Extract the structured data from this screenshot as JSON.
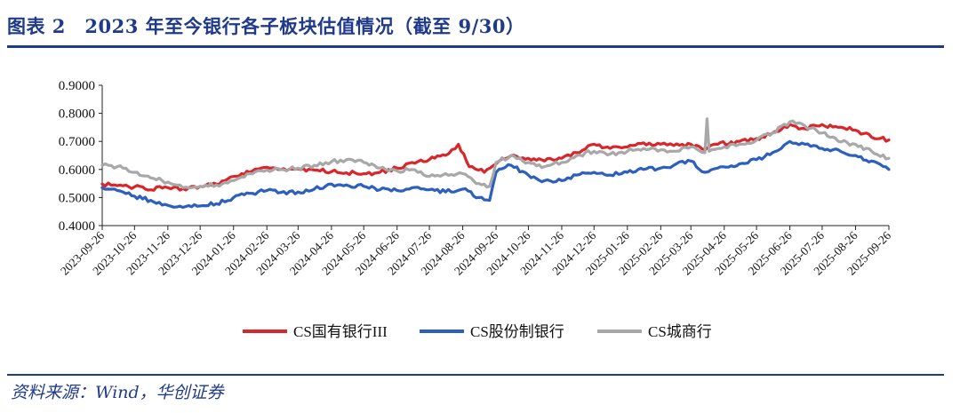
{
  "header": {
    "title": "图表 2　2023 年至今银行各子板块估值情况（截至 9/30）"
  },
  "source": "资料来源：Wind，华创证券",
  "colors": {
    "accent": "#1f3a8a",
    "series_red": "#d9262b",
    "series_blue": "#2d5fbf",
    "series_gray": "#a8a8a8"
  },
  "chart_data": {
    "type": "line",
    "title": "",
    "xlabel": "",
    "ylabel": "",
    "ylim": [
      0.4,
      0.9
    ],
    "yticks": [
      "0.9000",
      "0.8000",
      "0.7000",
      "0.6000",
      "0.5000",
      "0.4000"
    ],
    "x_tick_labels": [
      "2023-09-26",
      "2023-10-26",
      "2023-11-26",
      "2023-12-26",
      "2024-01-26",
      "2024-02-26",
      "2024-03-26",
      "2024-04-26",
      "2024-05-26",
      "2024-06-26",
      "2024-07-26",
      "2024-08-26",
      "2024-09-26",
      "2024-10-26",
      "2024-11-26",
      "2024-12-26",
      "2025-01-26",
      "2025-02-26",
      "2025-03-26",
      "2025-04-26",
      "2025-05-26",
      "2025-06-26",
      "2025-07-26",
      "2025-08-26",
      "2025-09-26"
    ],
    "legend_position": "bottom",
    "series": [
      {
        "name": "CS国有银行III",
        "color": "#d9262b",
        "points": [
          [
            "2023-09-26",
            0.548
          ],
          [
            "2023-10-10",
            0.542
          ],
          [
            "2023-10-26",
            0.538
          ],
          [
            "2023-11-05",
            0.53
          ],
          [
            "2023-11-26",
            0.535
          ],
          [
            "2023-12-10",
            0.532
          ],
          [
            "2023-12-26",
            0.54
          ],
          [
            "2024-01-10",
            0.548
          ],
          [
            "2024-01-26",
            0.575
          ],
          [
            "2024-02-10",
            0.59
          ],
          [
            "2024-02-26",
            0.608
          ],
          [
            "2024-03-10",
            0.6
          ],
          [
            "2024-03-26",
            0.602
          ],
          [
            "2024-04-10",
            0.598
          ],
          [
            "2024-04-26",
            0.592
          ],
          [
            "2024-05-10",
            0.588
          ],
          [
            "2024-05-26",
            0.585
          ],
          [
            "2024-06-10",
            0.59
          ],
          [
            "2024-06-26",
            0.605
          ],
          [
            "2024-07-10",
            0.625
          ],
          [
            "2024-07-26",
            0.635
          ],
          [
            "2024-08-10",
            0.65
          ],
          [
            "2024-08-22",
            0.69
          ],
          [
            "2024-09-01",
            0.61
          ],
          [
            "2024-09-15",
            0.59
          ],
          [
            "2024-09-26",
            0.62
          ],
          [
            "2024-10-10",
            0.65
          ],
          [
            "2024-10-26",
            0.64
          ],
          [
            "2024-11-10",
            0.63
          ],
          [
            "2024-11-26",
            0.64
          ],
          [
            "2024-12-10",
            0.66
          ],
          [
            "2024-12-26",
            0.69
          ],
          [
            "2025-01-10",
            0.675
          ],
          [
            "2025-01-26",
            0.68
          ],
          [
            "2025-02-10",
            0.695
          ],
          [
            "2025-02-26",
            0.69
          ],
          [
            "2025-03-10",
            0.685
          ],
          [
            "2025-03-26",
            0.69
          ],
          [
            "2025-04-08",
            0.67
          ],
          [
            "2025-04-20",
            0.69
          ],
          [
            "2025-05-10",
            0.7
          ],
          [
            "2025-05-26",
            0.71
          ],
          [
            "2025-06-10",
            0.73
          ],
          [
            "2025-06-26",
            0.76
          ],
          [
            "2025-07-10",
            0.745
          ],
          [
            "2025-07-26",
            0.76
          ],
          [
            "2025-08-10",
            0.75
          ],
          [
            "2025-08-26",
            0.74
          ],
          [
            "2025-09-10",
            0.715
          ],
          [
            "2025-09-26",
            0.705
          ]
        ]
      },
      {
        "name": "CS股份制银行",
        "color": "#2d5fbf",
        "points": [
          [
            "2023-09-26",
            0.535
          ],
          [
            "2023-10-10",
            0.525
          ],
          [
            "2023-10-26",
            0.505
          ],
          [
            "2023-11-10",
            0.49
          ],
          [
            "2023-11-26",
            0.472
          ],
          [
            "2023-12-10",
            0.465
          ],
          [
            "2023-12-26",
            0.47
          ],
          [
            "2024-01-10",
            0.478
          ],
          [
            "2024-01-26",
            0.5
          ],
          [
            "2024-02-10",
            0.515
          ],
          [
            "2024-02-26",
            0.525
          ],
          [
            "2024-03-10",
            0.518
          ],
          [
            "2024-03-26",
            0.52
          ],
          [
            "2024-04-10",
            0.53
          ],
          [
            "2024-04-26",
            0.548
          ],
          [
            "2024-05-10",
            0.545
          ],
          [
            "2024-05-26",
            0.54
          ],
          [
            "2024-06-10",
            0.528
          ],
          [
            "2024-06-26",
            0.525
          ],
          [
            "2024-07-10",
            0.535
          ],
          [
            "2024-07-26",
            0.528
          ],
          [
            "2024-08-10",
            0.52
          ],
          [
            "2024-08-26",
            0.53
          ],
          [
            "2024-09-10",
            0.5
          ],
          [
            "2024-09-20",
            0.49
          ],
          [
            "2024-09-26",
            0.59
          ],
          [
            "2024-10-10",
            0.615
          ],
          [
            "2024-10-26",
            0.58
          ],
          [
            "2024-11-10",
            0.56
          ],
          [
            "2024-11-26",
            0.56
          ],
          [
            "2024-12-10",
            0.58
          ],
          [
            "2024-12-26",
            0.59
          ],
          [
            "2025-01-10",
            0.58
          ],
          [
            "2025-01-26",
            0.59
          ],
          [
            "2025-02-10",
            0.6
          ],
          [
            "2025-02-26",
            0.605
          ],
          [
            "2025-03-10",
            0.615
          ],
          [
            "2025-03-26",
            0.63
          ],
          [
            "2025-04-08",
            0.59
          ],
          [
            "2025-04-20",
            0.605
          ],
          [
            "2025-05-10",
            0.62
          ],
          [
            "2025-05-26",
            0.635
          ],
          [
            "2025-06-10",
            0.66
          ],
          [
            "2025-06-26",
            0.7
          ],
          [
            "2025-07-10",
            0.69
          ],
          [
            "2025-07-26",
            0.675
          ],
          [
            "2025-08-10",
            0.67
          ],
          [
            "2025-08-26",
            0.65
          ],
          [
            "2025-09-10",
            0.63
          ],
          [
            "2025-09-26",
            0.6
          ]
        ]
      },
      {
        "name": "CS城商行",
        "color": "#a8a8a8",
        "points": [
          [
            "2023-09-26",
            0.615
          ],
          [
            "2023-10-10",
            0.61
          ],
          [
            "2023-10-26",
            0.59
          ],
          [
            "2023-11-10",
            0.57
          ],
          [
            "2023-11-26",
            0.555
          ],
          [
            "2023-12-10",
            0.535
          ],
          [
            "2023-12-26",
            0.54
          ],
          [
            "2024-01-10",
            0.545
          ],
          [
            "2024-01-26",
            0.56
          ],
          [
            "2024-02-10",
            0.585
          ],
          [
            "2024-02-26",
            0.598
          ],
          [
            "2024-03-10",
            0.6
          ],
          [
            "2024-03-26",
            0.605
          ],
          [
            "2024-04-10",
            0.615
          ],
          [
            "2024-04-26",
            0.628
          ],
          [
            "2024-05-10",
            0.635
          ],
          [
            "2024-05-26",
            0.625
          ],
          [
            "2024-06-10",
            0.605
          ],
          [
            "2024-06-26",
            0.595
          ],
          [
            "2024-07-10",
            0.6
          ],
          [
            "2024-07-26",
            0.575
          ],
          [
            "2024-08-10",
            0.585
          ],
          [
            "2024-08-26",
            0.585
          ],
          [
            "2024-09-10",
            0.55
          ],
          [
            "2024-09-20",
            0.54
          ],
          [
            "2024-09-26",
            0.625
          ],
          [
            "2024-10-10",
            0.65
          ],
          [
            "2024-10-26",
            0.625
          ],
          [
            "2024-11-10",
            0.61
          ],
          [
            "2024-11-26",
            0.625
          ],
          [
            "2024-12-10",
            0.65
          ],
          [
            "2024-12-26",
            0.665
          ],
          [
            "2025-01-10",
            0.655
          ],
          [
            "2025-01-26",
            0.665
          ],
          [
            "2025-02-10",
            0.675
          ],
          [
            "2025-02-26",
            0.67
          ],
          [
            "2025-03-10",
            0.665
          ],
          [
            "2025-03-26",
            0.68
          ],
          [
            "2025-04-08",
            0.66
          ],
          [
            "2025-04-10",
            0.78
          ],
          [
            "2025-04-12",
            0.665
          ],
          [
            "2025-04-26",
            0.68
          ],
          [
            "2025-05-10",
            0.69
          ],
          [
            "2025-05-26",
            0.705
          ],
          [
            "2025-06-10",
            0.73
          ],
          [
            "2025-06-26",
            0.77
          ],
          [
            "2025-07-10",
            0.755
          ],
          [
            "2025-07-26",
            0.73
          ],
          [
            "2025-08-10",
            0.7
          ],
          [
            "2025-08-26",
            0.69
          ],
          [
            "2025-09-10",
            0.665
          ],
          [
            "2025-09-26",
            0.64
          ]
        ]
      }
    ]
  }
}
